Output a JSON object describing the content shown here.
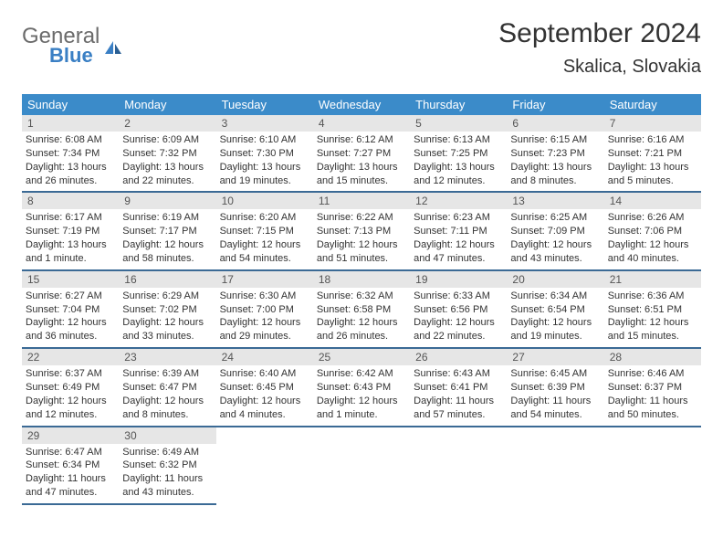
{
  "logo": {
    "gray_text": "General",
    "blue_text": "Blue"
  },
  "title": "September 2024",
  "location": "Skalica, Slovakia",
  "colors": {
    "header_bg": "#3b8bc9",
    "week_border": "#3b6a95",
    "daynum_bg": "#e6e6e6",
    "logo_gray": "#6b6b6b",
    "logo_blue": "#3a7fc4"
  },
  "weekdays": [
    "Sunday",
    "Monday",
    "Tuesday",
    "Wednesday",
    "Thursday",
    "Friday",
    "Saturday"
  ],
  "weeks": [
    [
      {
        "n": "1",
        "sr": "Sunrise: 6:08 AM",
        "ss": "Sunset: 7:34 PM",
        "d1": "Daylight: 13 hours",
        "d2": "and 26 minutes."
      },
      {
        "n": "2",
        "sr": "Sunrise: 6:09 AM",
        "ss": "Sunset: 7:32 PM",
        "d1": "Daylight: 13 hours",
        "d2": "and 22 minutes."
      },
      {
        "n": "3",
        "sr": "Sunrise: 6:10 AM",
        "ss": "Sunset: 7:30 PM",
        "d1": "Daylight: 13 hours",
        "d2": "and 19 minutes."
      },
      {
        "n": "4",
        "sr": "Sunrise: 6:12 AM",
        "ss": "Sunset: 7:27 PM",
        "d1": "Daylight: 13 hours",
        "d2": "and 15 minutes."
      },
      {
        "n": "5",
        "sr": "Sunrise: 6:13 AM",
        "ss": "Sunset: 7:25 PM",
        "d1": "Daylight: 13 hours",
        "d2": "and 12 minutes."
      },
      {
        "n": "6",
        "sr": "Sunrise: 6:15 AM",
        "ss": "Sunset: 7:23 PM",
        "d1": "Daylight: 13 hours",
        "d2": "and 8 minutes."
      },
      {
        "n": "7",
        "sr": "Sunrise: 6:16 AM",
        "ss": "Sunset: 7:21 PM",
        "d1": "Daylight: 13 hours",
        "d2": "and 5 minutes."
      }
    ],
    [
      {
        "n": "8",
        "sr": "Sunrise: 6:17 AM",
        "ss": "Sunset: 7:19 PM",
        "d1": "Daylight: 13 hours",
        "d2": "and 1 minute."
      },
      {
        "n": "9",
        "sr": "Sunrise: 6:19 AM",
        "ss": "Sunset: 7:17 PM",
        "d1": "Daylight: 12 hours",
        "d2": "and 58 minutes."
      },
      {
        "n": "10",
        "sr": "Sunrise: 6:20 AM",
        "ss": "Sunset: 7:15 PM",
        "d1": "Daylight: 12 hours",
        "d2": "and 54 minutes."
      },
      {
        "n": "11",
        "sr": "Sunrise: 6:22 AM",
        "ss": "Sunset: 7:13 PM",
        "d1": "Daylight: 12 hours",
        "d2": "and 51 minutes."
      },
      {
        "n": "12",
        "sr": "Sunrise: 6:23 AM",
        "ss": "Sunset: 7:11 PM",
        "d1": "Daylight: 12 hours",
        "d2": "and 47 minutes."
      },
      {
        "n": "13",
        "sr": "Sunrise: 6:25 AM",
        "ss": "Sunset: 7:09 PM",
        "d1": "Daylight: 12 hours",
        "d2": "and 43 minutes."
      },
      {
        "n": "14",
        "sr": "Sunrise: 6:26 AM",
        "ss": "Sunset: 7:06 PM",
        "d1": "Daylight: 12 hours",
        "d2": "and 40 minutes."
      }
    ],
    [
      {
        "n": "15",
        "sr": "Sunrise: 6:27 AM",
        "ss": "Sunset: 7:04 PM",
        "d1": "Daylight: 12 hours",
        "d2": "and 36 minutes."
      },
      {
        "n": "16",
        "sr": "Sunrise: 6:29 AM",
        "ss": "Sunset: 7:02 PM",
        "d1": "Daylight: 12 hours",
        "d2": "and 33 minutes."
      },
      {
        "n": "17",
        "sr": "Sunrise: 6:30 AM",
        "ss": "Sunset: 7:00 PM",
        "d1": "Daylight: 12 hours",
        "d2": "and 29 minutes."
      },
      {
        "n": "18",
        "sr": "Sunrise: 6:32 AM",
        "ss": "Sunset: 6:58 PM",
        "d1": "Daylight: 12 hours",
        "d2": "and 26 minutes."
      },
      {
        "n": "19",
        "sr": "Sunrise: 6:33 AM",
        "ss": "Sunset: 6:56 PM",
        "d1": "Daylight: 12 hours",
        "d2": "and 22 minutes."
      },
      {
        "n": "20",
        "sr": "Sunrise: 6:34 AM",
        "ss": "Sunset: 6:54 PM",
        "d1": "Daylight: 12 hours",
        "d2": "and 19 minutes."
      },
      {
        "n": "21",
        "sr": "Sunrise: 6:36 AM",
        "ss": "Sunset: 6:51 PM",
        "d1": "Daylight: 12 hours",
        "d2": "and 15 minutes."
      }
    ],
    [
      {
        "n": "22",
        "sr": "Sunrise: 6:37 AM",
        "ss": "Sunset: 6:49 PM",
        "d1": "Daylight: 12 hours",
        "d2": "and 12 minutes."
      },
      {
        "n": "23",
        "sr": "Sunrise: 6:39 AM",
        "ss": "Sunset: 6:47 PM",
        "d1": "Daylight: 12 hours",
        "d2": "and 8 minutes."
      },
      {
        "n": "24",
        "sr": "Sunrise: 6:40 AM",
        "ss": "Sunset: 6:45 PM",
        "d1": "Daylight: 12 hours",
        "d2": "and 4 minutes."
      },
      {
        "n": "25",
        "sr": "Sunrise: 6:42 AM",
        "ss": "Sunset: 6:43 PM",
        "d1": "Daylight: 12 hours",
        "d2": "and 1 minute."
      },
      {
        "n": "26",
        "sr": "Sunrise: 6:43 AM",
        "ss": "Sunset: 6:41 PM",
        "d1": "Daylight: 11 hours",
        "d2": "and 57 minutes."
      },
      {
        "n": "27",
        "sr": "Sunrise: 6:45 AM",
        "ss": "Sunset: 6:39 PM",
        "d1": "Daylight: 11 hours",
        "d2": "and 54 minutes."
      },
      {
        "n": "28",
        "sr": "Sunrise: 6:46 AM",
        "ss": "Sunset: 6:37 PM",
        "d1": "Daylight: 11 hours",
        "d2": "and 50 minutes."
      }
    ],
    [
      {
        "n": "29",
        "sr": "Sunrise: 6:47 AM",
        "ss": "Sunset: 6:34 PM",
        "d1": "Daylight: 11 hours",
        "d2": "and 47 minutes."
      },
      {
        "n": "30",
        "sr": "Sunrise: 6:49 AM",
        "ss": "Sunset: 6:32 PM",
        "d1": "Daylight: 11 hours",
        "d2": "and 43 minutes."
      },
      null,
      null,
      null,
      null,
      null
    ]
  ]
}
